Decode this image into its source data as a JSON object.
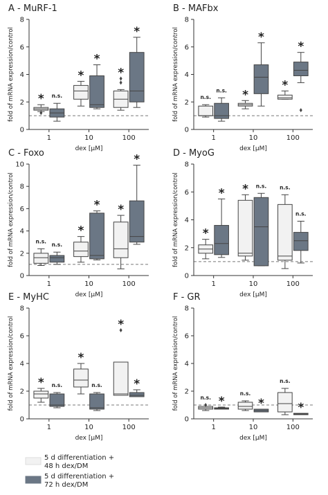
{
  "chart_data": [
    {
      "type": "box",
      "title": "A - MuRF-1",
      "y_label": "fold of mRNA expression/control",
      "x_label": "dex [μM]",
      "categories": [
        "1",
        "10",
        "100"
      ],
      "ylim": [
        0,
        8
      ],
      "yticks": [
        0,
        2,
        4,
        6,
        8
      ],
      "reference_line": 1,
      "series": [
        {
          "color": "#f2f2f2",
          "boxes": [
            {
              "low": 1.3,
              "q1": 1.4,
              "median": 1.5,
              "q3": 1.6,
              "high": 1.8
            },
            {
              "low": 1.7,
              "q1": 2.2,
              "median": 2.8,
              "q3": 3.2,
              "high": 3.5
            },
            {
              "low": 1.4,
              "q1": 1.6,
              "median": 2.2,
              "q3": 2.8,
              "high": 2.9
            }
          ],
          "outliers": [
            [
              1.2
            ],
            [],
            [
              3.4,
              3.7
            ]
          ],
          "annotations": [
            "*",
            "*",
            "*"
          ]
        },
        {
          "color": "#6b7785",
          "boxes": [
            {
              "low": 0.6,
              "q1": 0.9,
              "median": 1.2,
              "q3": 1.5,
              "high": 1.9
            },
            {
              "low": 1.5,
              "q1": 1.6,
              "median": 1.8,
              "q3": 3.9,
              "high": 4.7
            },
            {
              "low": 1.6,
              "q1": 2.0,
              "median": 2.8,
              "q3": 5.6,
              "high": 6.7
            }
          ],
          "outliers": [
            [],
            [],
            []
          ],
          "annotations": [
            "n.s.",
            "*",
            "*"
          ]
        }
      ]
    },
    {
      "type": "box",
      "title": "B - MAFbx",
      "y_label": "fold of mRNA expression/control",
      "x_label": "dex [μM]",
      "categories": [
        "1",
        "10",
        "100"
      ],
      "ylim": [
        0,
        8
      ],
      "yticks": [
        0,
        2,
        4,
        6,
        8
      ],
      "reference_line": 1,
      "series": [
        {
          "color": "#f2f2f2",
          "boxes": [
            {
              "low": 0.9,
              "q1": 1.0,
              "median": 1.0,
              "q3": 1.7,
              "high": 1.8
            },
            {
              "low": 1.5,
              "q1": 1.7,
              "median": 1.8,
              "q3": 1.9,
              "high": 2.1
            },
            {
              "low": 2.2,
              "q1": 2.2,
              "median": 2.3,
              "q3": 2.5,
              "high": 2.8
            }
          ],
          "outliers": [
            [],
            [],
            []
          ],
          "annotations": [
            "n.s.",
            "*",
            "*"
          ]
        },
        {
          "color": "#6b7785",
          "boxes": [
            {
              "low": 0.6,
              "q1": 0.8,
              "median": 1.0,
              "q3": 1.9,
              "high": 2.3
            },
            {
              "low": 1.7,
              "q1": 2.6,
              "median": 3.8,
              "q3": 4.7,
              "high": 6.3
            },
            {
              "low": 3.4,
              "q1": 3.9,
              "median": 4.3,
              "q3": 4.9,
              "high": 5.6
            }
          ],
          "outliers": [
            [],
            [],
            [
              1.4
            ]
          ],
          "annotations": [
            "n.s.",
            "*",
            "*"
          ]
        }
      ]
    },
    {
      "type": "box",
      "title": "C - Foxo",
      "y_label": "fold of mRNA expression/control",
      "x_label": "dex [μM]",
      "categories": [
        "1",
        "10",
        "100"
      ],
      "ylim": [
        0,
        10
      ],
      "yticks": [
        0,
        2,
        4,
        6,
        8,
        10
      ],
      "reference_line": 1,
      "series": [
        {
          "color": "#f2f2f2",
          "boxes": [
            {
              "low": 0.9,
              "q1": 1.1,
              "median": 1.6,
              "q3": 2.0,
              "high": 2.4
            },
            {
              "low": 1.2,
              "q1": 1.7,
              "median": 2.2,
              "q3": 3.0,
              "high": 3.5
            },
            {
              "low": 0.6,
              "q1": 1.6,
              "median": 2.4,
              "q3": 4.8,
              "high": 5.4
            }
          ],
          "outliers": [
            [],
            [],
            []
          ],
          "annotations": [
            "n.s.",
            "*",
            "*"
          ]
        },
        {
          "color": "#6b7785",
          "boxes": [
            {
              "low": 1.0,
              "q1": 1.2,
              "median": 1.6,
              "q3": 1.8,
              "high": 2.1
            },
            {
              "low": 1.4,
              "q1": 1.5,
              "median": 1.8,
              "q3": 5.6,
              "high": 5.8
            },
            {
              "low": 2.8,
              "q1": 3.0,
              "median": 3.5,
              "q3": 6.7,
              "high": 9.9
            }
          ],
          "outliers": [
            [],
            [],
            []
          ],
          "annotations": [
            "n.s.",
            "*",
            "*"
          ]
        }
      ]
    },
    {
      "type": "box",
      "title": "D - MyoG",
      "y_label": "fold of mRNA expression/control",
      "x_label": "dex [μM]",
      "categories": [
        "1",
        "10",
        "100"
      ],
      "ylim": [
        0,
        8
      ],
      "yticks": [
        0,
        2,
        4,
        6,
        8
      ],
      "reference_line": 1,
      "series": [
        {
          "color": "#f2f2f2",
          "boxes": [
            {
              "low": 1.2,
              "q1": 1.6,
              "median": 1.9,
              "q3": 2.2,
              "high": 2.6
            },
            {
              "low": 1.1,
              "q1": 1.4,
              "median": 1.6,
              "q3": 5.4,
              "high": 5.8
            },
            {
              "low": 0.5,
              "q1": 1.1,
              "median": 1.4,
              "q3": 5.1,
              "high": 5.8
            }
          ],
          "outliers": [
            [],
            [],
            []
          ],
          "annotations": [
            "*",
            "*",
            "n.s."
          ]
        },
        {
          "color": "#6b7785",
          "boxes": [
            {
              "low": 1.3,
              "q1": 1.5,
              "median": 2.3,
              "q3": 3.6,
              "high": 5.5
            },
            {
              "low": 0.7,
              "q1": 0.7,
              "median": 3.5,
              "q3": 5.6,
              "high": 5.9
            },
            {
              "low": 0.9,
              "q1": 1.8,
              "median": 2.5,
              "q3": 3.1,
              "high": 3.9
            }
          ],
          "outliers": [
            [],
            [],
            []
          ],
          "annotations": [
            "*",
            "n.s.",
            "n.s."
          ]
        }
      ]
    },
    {
      "type": "box",
      "title": "E - MyHC",
      "y_label": "fold of mRNA expression/control",
      "x_label": "dex [μM]",
      "categories": [
        "1",
        "10",
        "100"
      ],
      "ylim": [
        0,
        8
      ],
      "yticks": [
        0,
        2,
        4,
        6,
        8
      ],
      "reference_line": 1,
      "series": [
        {
          "color": "#f2f2f2",
          "boxes": [
            {
              "low": 1.2,
              "q1": 1.5,
              "median": 1.8,
              "q3": 2.0,
              "high": 2.2
            },
            {
              "low": 1.8,
              "q1": 2.3,
              "median": 2.8,
              "q3": 3.6,
              "high": 4.0
            },
            {
              "low": 1.7,
              "q1": 1.7,
              "median": 1.8,
              "q3": 4.1,
              "high": 4.1
            }
          ],
          "outliers": [
            [],
            [],
            [
              6.4
            ]
          ],
          "annotations": [
            "*",
            "*",
            "*"
          ]
        },
        {
          "color": "#6b7785",
          "boxes": [
            {
              "low": 0.8,
              "q1": 0.9,
              "median": 1.0,
              "q3": 1.8,
              "high": 1.9
            },
            {
              "low": 0.6,
              "q1": 0.7,
              "median": 0.8,
              "q3": 1.8,
              "high": 1.9
            },
            {
              "low": 1.6,
              "q1": 1.6,
              "median": 1.7,
              "q3": 1.9,
              "high": 2.1
            }
          ],
          "outliers": [
            [],
            [],
            []
          ],
          "annotations": [
            "n.s.",
            "n.s.",
            "*"
          ]
        }
      ]
    },
    {
      "type": "box",
      "title": "F - GR",
      "y_label": "fold of mRNA expression/control",
      "x_label": "dex [μM]",
      "categories": [
        "1",
        "10",
        "100"
      ],
      "ylim": [
        0,
        8
      ],
      "yticks": [
        0,
        2,
        4,
        6,
        8
      ],
      "reference_line": 1,
      "series": [
        {
          "color": "#f2f2f2",
          "boxes": [
            {
              "low": 0.6,
              "q1": 0.7,
              "median": 0.8,
              "q3": 0.9,
              "high": 0.9
            },
            {
              "low": 0.6,
              "q1": 0.7,
              "median": 0.9,
              "q3": 1.2,
              "high": 1.3
            },
            {
              "low": 0.3,
              "q1": 0.5,
              "median": 1.1,
              "q3": 1.9,
              "high": 2.2
            }
          ],
          "outliers": [
            [
              1.0
            ],
            [],
            []
          ],
          "annotations": [
            "n.s.",
            "n.s.",
            "n.s."
          ]
        },
        {
          "color": "#6b7785",
          "boxes": [
            {
              "low": 0.7,
              "q1": 0.7,
              "median": 0.75,
              "q3": 0.8,
              "high": 0.85
            },
            {
              "low": 0.5,
              "q1": 0.5,
              "median": 0.6,
              "q3": 0.7,
              "high": 0.7
            },
            {
              "low": 0.3,
              "q1": 0.3,
              "median": 0.35,
              "q3": 0.4,
              "high": 0.4
            }
          ],
          "outliers": [
            [],
            [],
            []
          ],
          "annotations": [
            "*",
            "*",
            "*"
          ]
        }
      ]
    }
  ],
  "legend": {
    "entries": [
      {
        "name": "5 d differentiation + 48 h dex/DM",
        "color": "#f2f2f2"
      },
      {
        "name": "5 d differentiation + 72 h dex/DM",
        "color": "#6b7785"
      }
    ]
  }
}
